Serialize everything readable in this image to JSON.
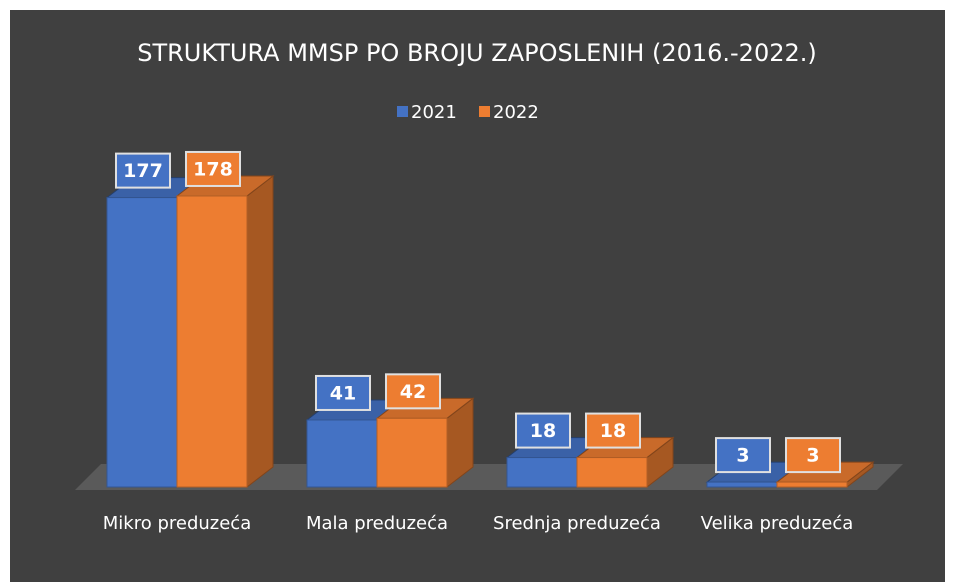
{
  "chart_data": {
    "type": "bar3d",
    "title": "STRUKTURA MMSP PO BROJU ZAPOSLENIH (2016.-2022.)",
    "categories": [
      "Mikro preduzeća",
      "Mala preduzeća",
      "Srednja preduzeća",
      "Velika preduzeća"
    ],
    "series": [
      {
        "name": "2021",
        "color": "#4472c4",
        "values": [
          177,
          41,
          18,
          3
        ]
      },
      {
        "name": "2022",
        "color": "#ed7d31",
        "values": [
          178,
          42,
          18,
          3
        ]
      }
    ],
    "ylim": [
      0,
      200
    ],
    "legend": "top",
    "data_labels": true
  }
}
